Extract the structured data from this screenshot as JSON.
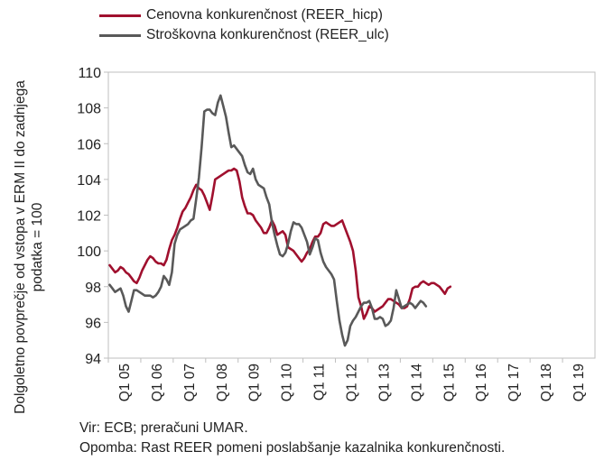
{
  "legend": [
    {
      "label": "Cenovna konkurenčnost (REER_hicp)",
      "color": "#a0102e"
    },
    {
      "label": "Stroškovna konkurenčnost (REER_ulc)",
      "color": "#595959"
    }
  ],
  "y_axis_label": "Dolgoletno povprečje od vstopa v ERM II do zadnjega podatka = 100",
  "notes": {
    "source": "Vir: ECB; preračuni UMAR.",
    "remark": "Opomba: Rast REER pomeni poslabšanje kazalnika konkurenčnosti."
  },
  "chart_data": {
    "type": "line",
    "x_tick_labels": [
      "Q1 05",
      "Q1 06",
      "Q1 07",
      "Q1 08",
      "Q1 09",
      "Q1 10",
      "Q1 11",
      "Q1 12",
      "Q1 13",
      "Q1 14",
      "Q1 15",
      "Q1 16",
      "Q1 17",
      "Q1 18",
      "Q1 19"
    ],
    "y_ticks": [
      94,
      96,
      98,
      100,
      102,
      104,
      106,
      108,
      110
    ],
    "ylim": [
      94,
      110
    ],
    "x_start": "Q1 05",
    "x_end": "Q1 19",
    "frequency": "monthly",
    "ylabel": "Dolgoletno povprečje od vstopa v ERM II do zadnjega podatka = 100",
    "grid": false,
    "legend_position": "top-left",
    "series": [
      {
        "name": "Cenovna konkurenčnost (REER_hicp)",
        "color": "#a0102e",
        "values": [
          99.2,
          99.0,
          98.8,
          98.9,
          99.1,
          99.0,
          98.8,
          98.7,
          98.5,
          98.3,
          98.2,
          98.5,
          98.9,
          99.2,
          99.5,
          99.7,
          99.6,
          99.4,
          99.3,
          99.3,
          99.2,
          99.5,
          100.1,
          100.6,
          100.9,
          101.3,
          101.8,
          102.2,
          102.4,
          102.7,
          103.0,
          103.4,
          103.7,
          103.5,
          103.4,
          103.1,
          102.7,
          102.3,
          103.1,
          104.0,
          104.1,
          104.2,
          104.3,
          104.4,
          104.5,
          104.5,
          104.6,
          104.5,
          103.9,
          103.0,
          102.5,
          102.1,
          102.1,
          102.0,
          101.7,
          101.5,
          101.3,
          101.0,
          101.0,
          101.3,
          101.7,
          101.4,
          100.9,
          101.0,
          101.1,
          100.9,
          100.2,
          100.1,
          100.0,
          99.8,
          99.6,
          99.4,
          99.6,
          99.9,
          100.1,
          100.5,
          100.8,
          100.8,
          101.0,
          101.5,
          101.6,
          101.5,
          101.4,
          101.4,
          101.5,
          101.6,
          101.7,
          101.3,
          100.9,
          100.5,
          100.0,
          98.9,
          97.4,
          96.9,
          96.2,
          96.5,
          96.9,
          96.8,
          96.6,
          96.7,
          96.8,
          96.9,
          97.1,
          97.3,
          97.3,
          97.2,
          97.1,
          97.0,
          96.8,
          96.8,
          96.9,
          97.3,
          97.9,
          98.0,
          98.0,
          98.2,
          98.3,
          98.2,
          98.1,
          98.2,
          98.2,
          98.1,
          98.0,
          97.8,
          97.6,
          97.9,
          98.0
        ]
      },
      {
        "name": "Stroškovna konkurenčnost (REER_ulc)",
        "color": "#595959",
        "values": [
          98.1,
          97.9,
          97.7,
          97.8,
          97.9,
          97.5,
          96.9,
          96.6,
          97.2,
          97.8,
          97.8,
          97.7,
          97.6,
          97.5,
          97.5,
          97.5,
          97.4,
          97.5,
          97.7,
          98.0,
          98.6,
          98.4,
          98.1,
          98.8,
          100.4,
          100.9,
          101.2,
          101.3,
          101.4,
          101.5,
          101.7,
          101.8,
          102.9,
          104.1,
          105.8,
          107.8,
          107.9,
          107.9,
          107.7,
          107.6,
          108.3,
          108.7,
          108.1,
          107.5,
          106.6,
          105.8,
          105.9,
          105.7,
          105.5,
          105.3,
          104.8,
          104.4,
          104.3,
          104.6,
          104.0,
          103.7,
          103.6,
          103.5,
          103.0,
          102.6,
          101.6,
          100.9,
          100.3,
          99.8,
          99.7,
          99.9,
          100.4,
          101.1,
          101.6,
          101.5,
          101.5,
          101.3,
          100.9,
          100.5,
          99.8,
          100.2,
          100.7,
          100.6,
          99.9,
          99.4,
          99.1,
          98.9,
          98.7,
          98.4,
          97.2,
          96.1,
          95.3,
          94.7,
          95.0,
          95.8,
          96.1,
          96.3,
          96.6,
          96.9,
          97.1,
          97.1,
          97.2,
          96.8,
          96.2,
          96.2,
          96.3,
          96.2,
          95.8,
          95.9,
          96.1,
          96.8,
          97.8,
          97.3,
          96.8,
          96.9,
          97.0,
          97.1,
          97.0,
          96.8,
          97.0,
          97.2,
          97.1,
          96.9
        ]
      }
    ]
  }
}
